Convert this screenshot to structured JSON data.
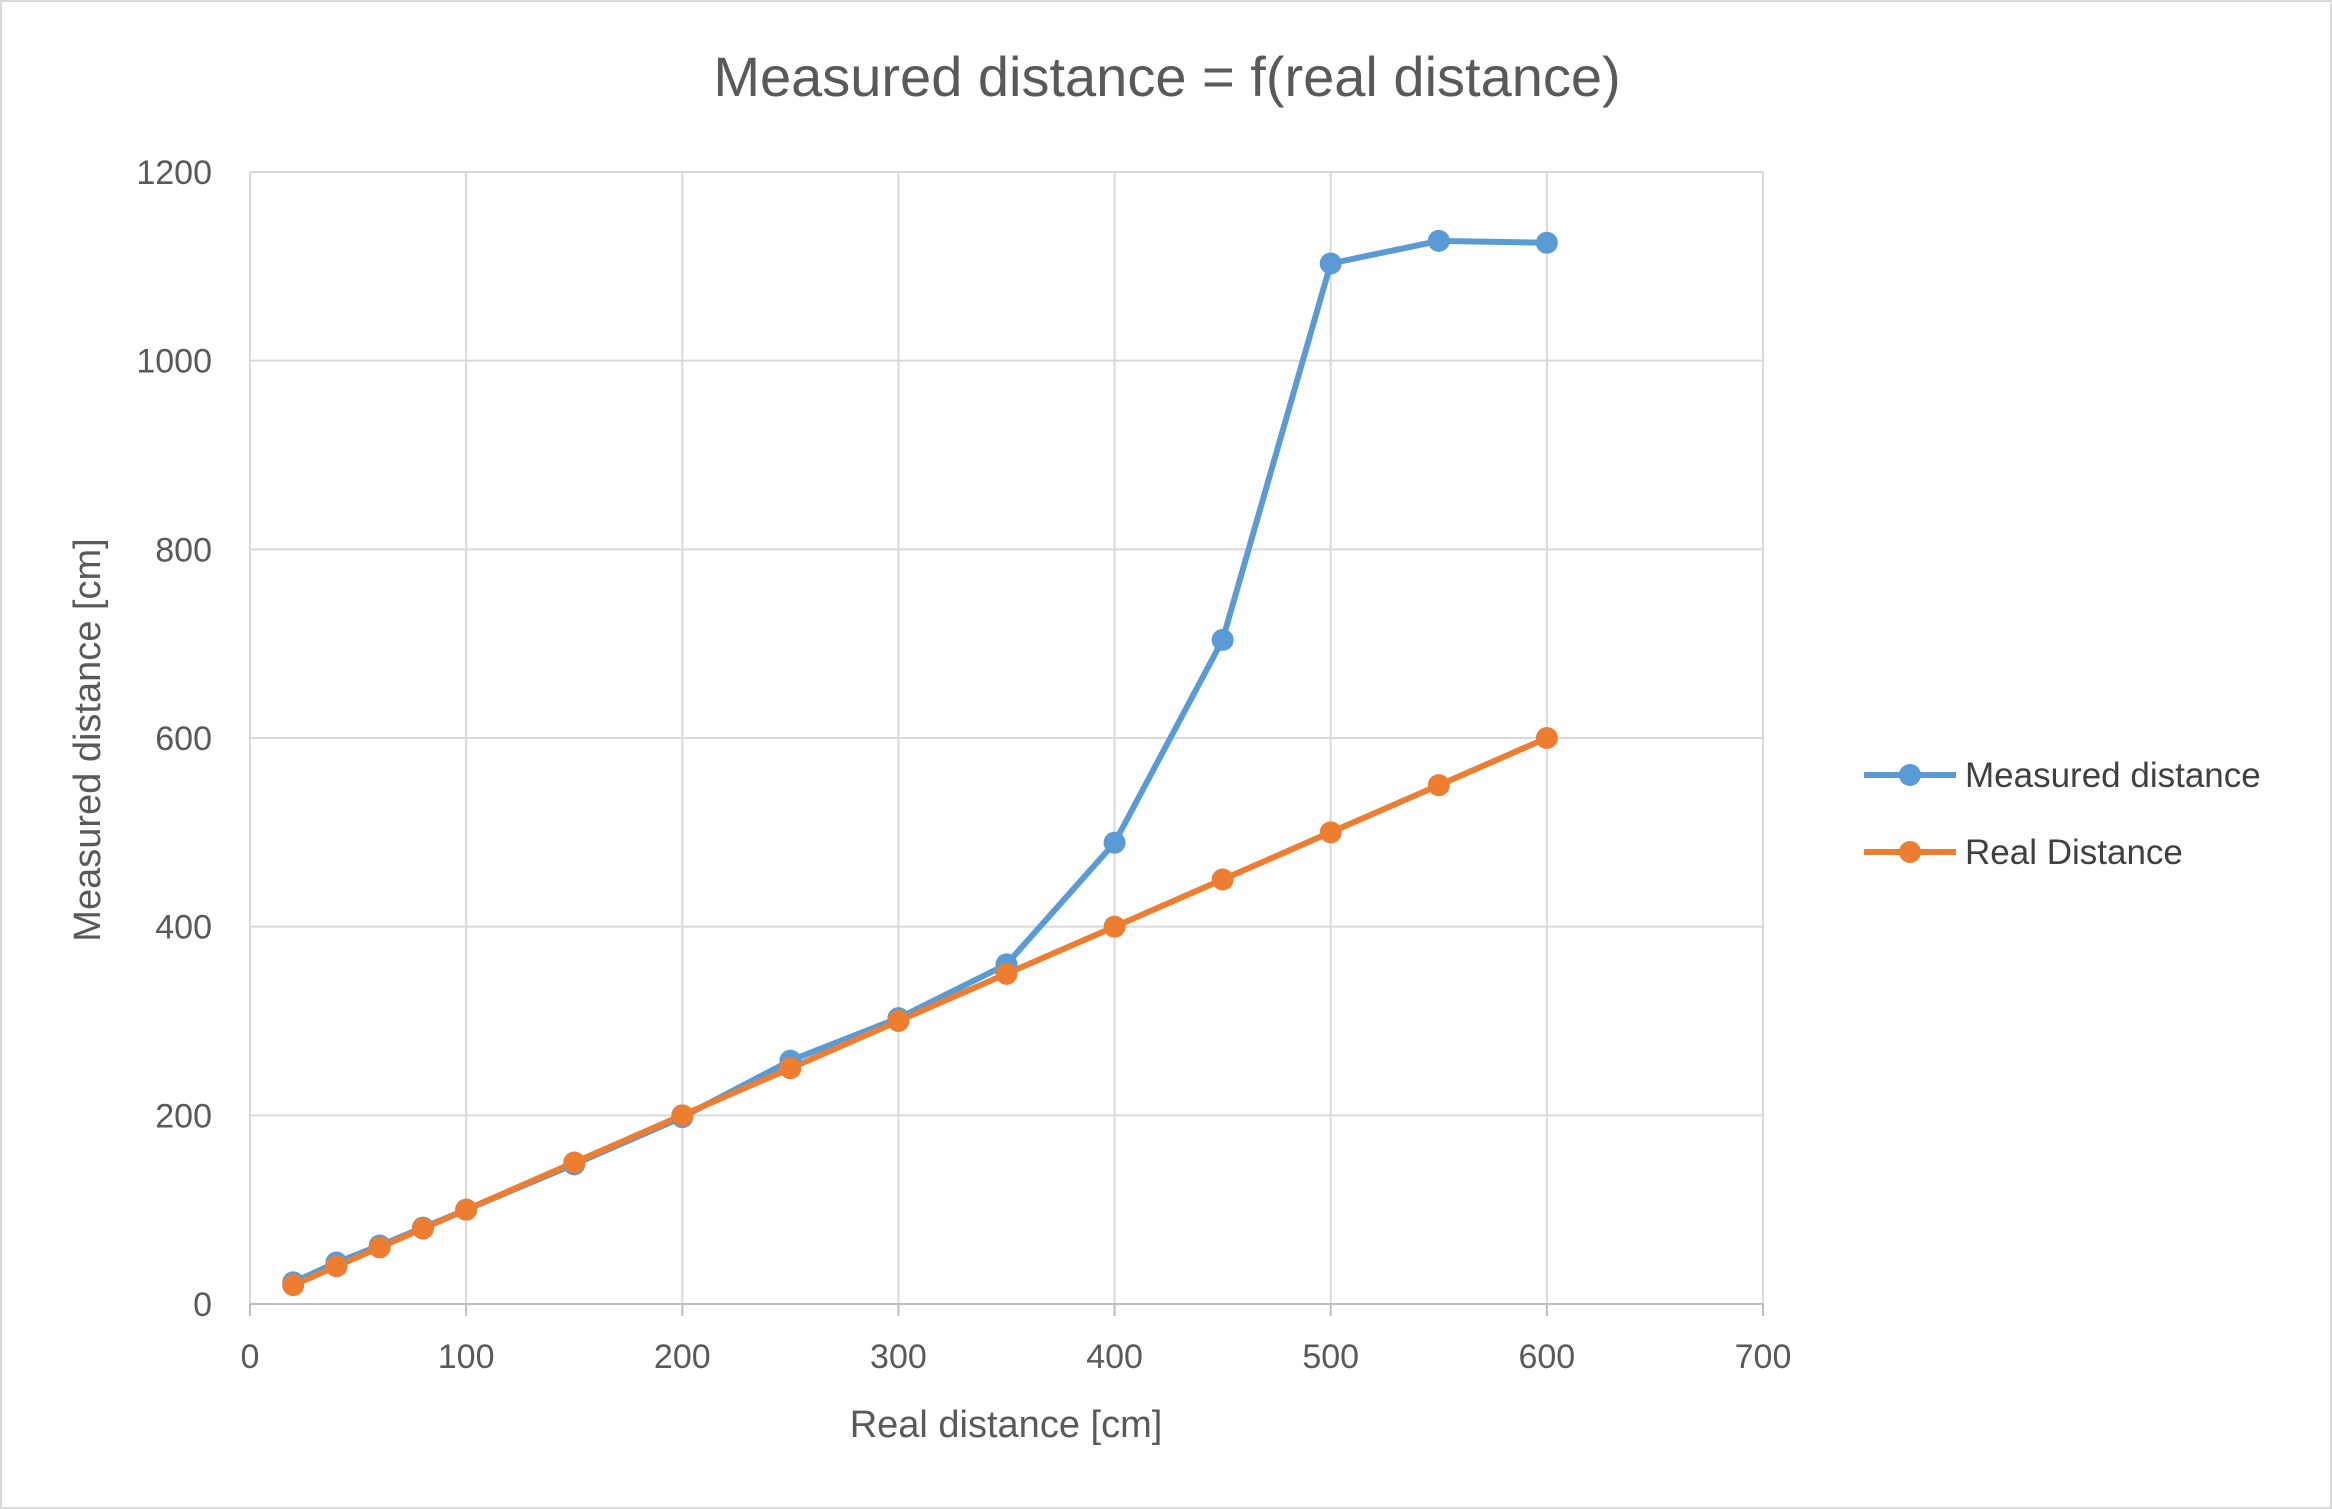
{
  "chart_data": {
    "type": "scatter",
    "title": "Measured distance = f(real distance)",
    "xlabel": "Real distance [cm]",
    "ylabel": "Measured distance [cm]",
    "xlim": [
      0,
      700
    ],
    "ylim": [
      0,
      1200
    ],
    "x_ticks": [
      0,
      100,
      200,
      300,
      400,
      500,
      600,
      700
    ],
    "y_ticks": [
      0,
      200,
      400,
      600,
      800,
      1000,
      1200
    ],
    "grid": true,
    "legend_position": "right",
    "series": [
      {
        "name": "Measured distance",
        "color": "#5b9bd5",
        "marker": "circle",
        "x": [
          20,
          40,
          60,
          80,
          100,
          150,
          200,
          250,
          300,
          350,
          400,
          450,
          500,
          550,
          600
        ],
        "y": [
          23,
          44,
          62,
          81,
          100,
          148,
          198,
          258,
          303,
          360,
          489,
          704,
          1103,
          1127,
          1125
        ]
      },
      {
        "name": "Real Distance",
        "color": "#ed7d31",
        "marker": "circle",
        "x": [
          20,
          40,
          60,
          80,
          100,
          150,
          200,
          250,
          300,
          350,
          400,
          450,
          500,
          550,
          600
        ],
        "y": [
          20,
          40,
          60,
          80,
          100,
          150,
          200,
          250,
          300,
          350,
          400,
          450,
          500,
          550,
          600
        ]
      }
    ]
  }
}
